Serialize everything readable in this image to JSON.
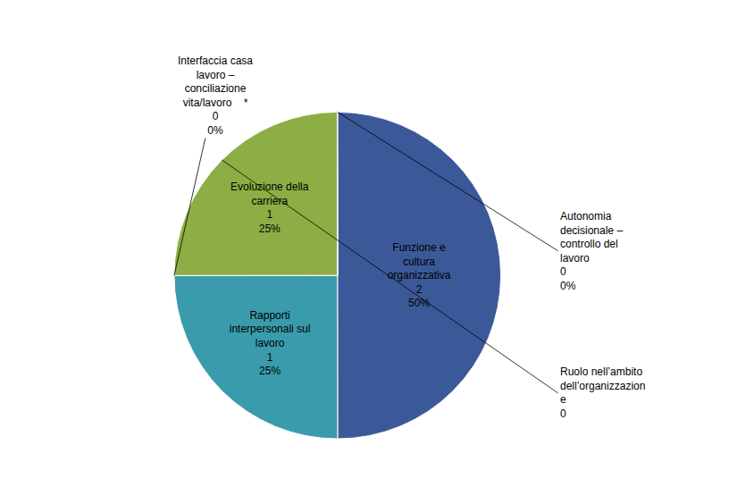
{
  "chart_data": {
    "type": "pie",
    "categories": [
      "Funzione e\ncultura\norganizzativa\n2\n50%",
      "Rapporti\ninterpersonali sul\nlavoro\n1\n25%",
      null,
      "Evoluzione della\ncarriera\n1\n25%",
      null,
      null
    ],
    "values": [
      50,
      25,
      0.01,
      25,
      0.01,
      0.01
    ],
    "colors": [
      "#3B5998",
      "#3A9BAD",
      "#3A9BAD",
      "#8DAE44",
      "#3B5998",
      "#3B5998"
    ],
    "annotations": [
      {
        "text": "Autonomia\ndecisionale –\ncontrollo del\nlavoro\n0\n0%",
        "slice": 5
      },
      {
        "text": "Interfaccia casa\nlavoro –\nconciliazione\nvita/lavoro    *\n0\n0%",
        "slice": 2
      },
      {
        "text": "Ruolo nell’ambito\ndell’organizzazion\ne\n0",
        "slice": 3
      }
    ]
  }
}
